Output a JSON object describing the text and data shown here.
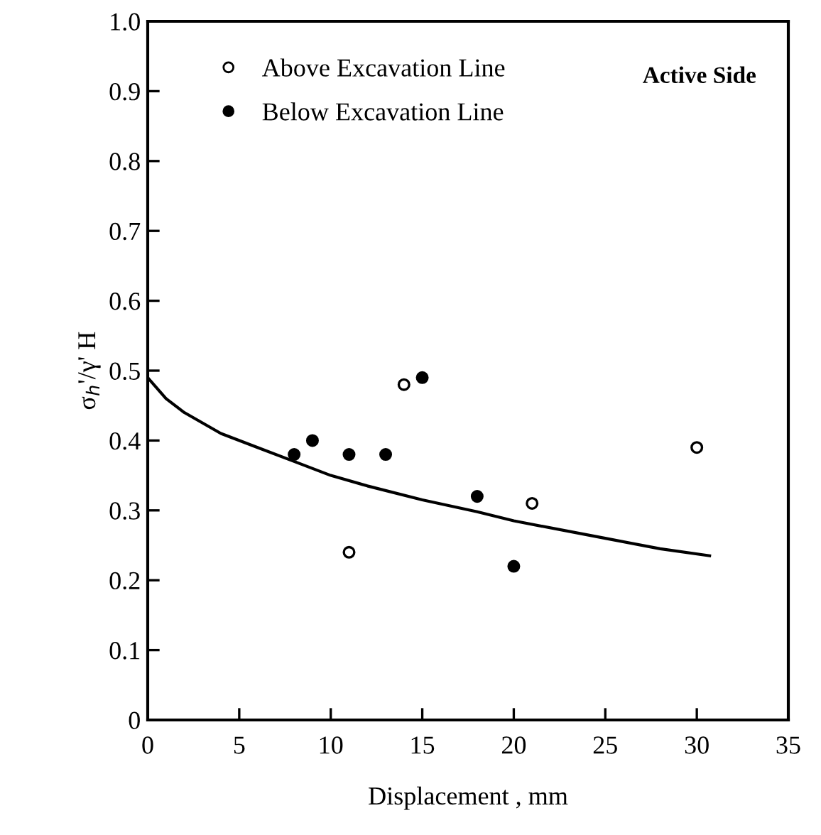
{
  "chart_data": {
    "type": "scatter",
    "xlabel": "Displacement , mm",
    "ylabel": "σ$_{h}$'/γ' H",
    "annotations": [
      "Active Side"
    ],
    "series": [
      {
        "name": "Above Excavation Line",
        "color": "#ffffff",
        "x": [
          11,
          14,
          21,
          30
        ],
        "values": [
          0.24,
          0.48,
          0.31,
          0.39
        ]
      },
      {
        "name": "Below Excavation Line",
        "color": "#000000",
        "x": [
          8,
          9,
          11,
          13,
          15,
          18,
          20
        ],
        "values": [
          0.38,
          0.4,
          0.38,
          0.38,
          0.49,
          0.32,
          0.22
        ]
      },
      {
        "type": "line",
        "color": "#000000",
        "marker": "none",
        "x": [
          0,
          1,
          2,
          4,
          6,
          8,
          10,
          12,
          15,
          18,
          20,
          25,
          28,
          30.7
        ],
        "values": [
          0.49,
          0.46,
          0.44,
          0.41,
          0.39,
          0.37,
          0.35,
          0.335,
          0.315,
          0.298,
          0.285,
          0.26,
          0.245,
          0.235
        ]
      }
    ],
    "xlim": [
      0,
      35
    ],
    "xticks": [
      0,
      5,
      10,
      15,
      20,
      25,
      30,
      35
    ],
    "ylim": [
      0,
      1.0
    ],
    "yticks": [
      {
        "value": 0,
        "label": "0"
      },
      0.1,
      0.2,
      0.3,
      0.4,
      0.5,
      0.6,
      0.7,
      0.8,
      0.9,
      {
        "value": 1.0,
        "label": "1.0"
      }
    ],
    "marker": "circle",
    "legend": "top left",
    "grid": false
  }
}
